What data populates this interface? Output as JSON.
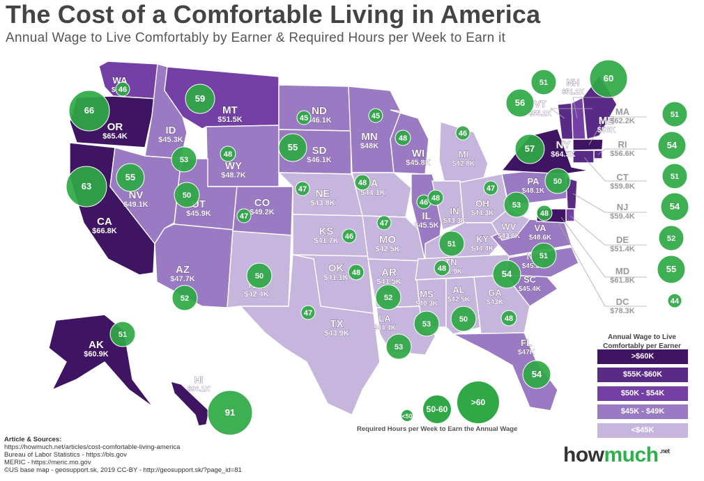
{
  "header": {
    "title": "The Cost of a Comfortable Living in America",
    "subtitle": "Annual Wage to Live Comfortably by Earner & Required Hours per Week to Earn it"
  },
  "colors": {
    "gt60": "#3f1463",
    "b55_60": "#5a2b86",
    "b50_54": "#7440a6",
    "b45_49": "#9a7ac2",
    "lt45": "#c6b5dc",
    "bubble": "#2fa845"
  },
  "states": [
    {
      "code": "WA",
      "wage": "$53K",
      "hours": "46"
    },
    {
      "code": "OR",
      "wage": "$65.4K",
      "hours": "66"
    },
    {
      "code": "CA",
      "wage": "$66.8K",
      "hours": "63"
    },
    {
      "code": "ID",
      "wage": "$45.3K",
      "hours": "53"
    },
    {
      "code": "NV",
      "wage": "$49.1K",
      "hours": "55"
    },
    {
      "code": "MT",
      "wage": "$51.5K",
      "hours": "59"
    },
    {
      "code": "WY",
      "wage": "$48.7K",
      "hours": "48"
    },
    {
      "code": "UT",
      "wage": "$45.9K",
      "hours": "50"
    },
    {
      "code": "CO",
      "wage": "$49.2K",
      "hours": "47"
    },
    {
      "code": "AZ",
      "wage": "$47.7K",
      "hours": "52"
    },
    {
      "code": "NM",
      "wage": "$42.4K",
      "hours": "50"
    },
    {
      "code": "ND",
      "wage": "$46.1K",
      "hours": "45"
    },
    {
      "code": "SD",
      "wage": "$46.1K",
      "hours": "55"
    },
    {
      "code": "NE",
      "wage": "$43.8K",
      "hours": "47"
    },
    {
      "code": "KS",
      "wage": "$41.7K",
      "hours": "46"
    },
    {
      "code": "OK",
      "wage": "$41.1K",
      "hours": "48"
    },
    {
      "code": "TX",
      "wage": "$43.9K",
      "hours": "47"
    },
    {
      "code": "MN",
      "wage": "$48K",
      "hours": "45"
    },
    {
      "code": "IA",
      "wage": "$44.1K",
      "hours": "48"
    },
    {
      "code": "MO",
      "wage": "$42.5K",
      "hours": "47"
    },
    {
      "code": "AR",
      "wage": "$41.5K",
      "hours": "52"
    },
    {
      "code": "LA",
      "wage": "$44.4K",
      "hours": "53"
    },
    {
      "code": "WI",
      "wage": "$45.8K",
      "hours": "48"
    },
    {
      "code": "IL",
      "wage": "$45.5K",
      "hours": "46"
    },
    {
      "code": "MI",
      "wage": "$42.8K",
      "hours": "46"
    },
    {
      "code": "IN",
      "wage": "$43.3K",
      "hours": "48"
    },
    {
      "code": "OH",
      "wage": "$44.3K",
      "hours": "47"
    },
    {
      "code": "KY",
      "wage": "$44.4K",
      "hours": "51"
    },
    {
      "code": "TN",
      "wage": "$41.9K",
      "hours": "48"
    },
    {
      "code": "MS",
      "wage": "$40.3K",
      "hours": "53"
    },
    {
      "code": "AL",
      "wage": "$42.5K",
      "hours": "50"
    },
    {
      "code": "GA",
      "wage": "$43K",
      "hours": "48"
    },
    {
      "code": "FL",
      "wage": "$47K",
      "hours": "54"
    },
    {
      "code": "SC",
      "wage": "$45.4K",
      "hours": "54"
    },
    {
      "code": "NC",
      "wage": "$45.3K",
      "hours": "51"
    },
    {
      "code": "VA",
      "wage": "$48.6K",
      "hours": "48"
    },
    {
      "code": "WV",
      "wage": "$43.6K",
      "hours": "53"
    },
    {
      "code": "PA",
      "wage": "$48.1K",
      "hours": "50"
    },
    {
      "code": "NY",
      "wage": "$64.5K",
      "hours": "57"
    },
    {
      "code": "ME",
      "wage": "$56K",
      "hours": "60"
    },
    {
      "code": "VT",
      "wage": "$55.2K",
      "hours": "56"
    },
    {
      "code": "NH",
      "wage": "$51.2K",
      "hours": "51"
    },
    {
      "code": "MA",
      "wage": "$62.2K",
      "hours": "51"
    },
    {
      "code": "RI",
      "wage": "$56.6K",
      "hours": "54"
    },
    {
      "code": "CT",
      "wage": "$59.8K",
      "hours": "51"
    },
    {
      "code": "NJ",
      "wage": "$59.4K",
      "hours": "54"
    },
    {
      "code": "DE",
      "wage": "$51.4K",
      "hours": "52"
    },
    {
      "code": "MD",
      "wage": "$61.8K",
      "hours": "55"
    },
    {
      "code": "DC",
      "wage": "$78.3K",
      "hours": "44"
    },
    {
      "code": "AK",
      "wage": "$60.9K",
      "hours": "51"
    },
    {
      "code": "HI",
      "wage": "$96.1K",
      "hours": "91"
    }
  ],
  "legend": {
    "title_line1": "Annual Wage to Live",
    "title_line2": "Comfortably per Earner",
    "items": [
      ">$60K",
      "$55K-$60K",
      "$50K - $54K",
      "$45K - $49K",
      "<$45K"
    ],
    "hours_caption": "Required Hours per Week to Earn the Annual Wage",
    "hours_items": [
      "<50",
      "50-60",
      ">60"
    ]
  },
  "sources": {
    "header": "Article & Sources:",
    "lines": [
      "https://howmuch.net/articles/cost-comfortable-living-america",
      "Bureau of Labor Statistics - https://bls.gov",
      "MERIC - https://meric.mo.gov",
      "©US base map - geosupport.sk, 2019 CC-BY - http://geosupport.sk/?page_id=81"
    ]
  },
  "brand": {
    "how": "how",
    "much": "much",
    "net": ".net"
  }
}
